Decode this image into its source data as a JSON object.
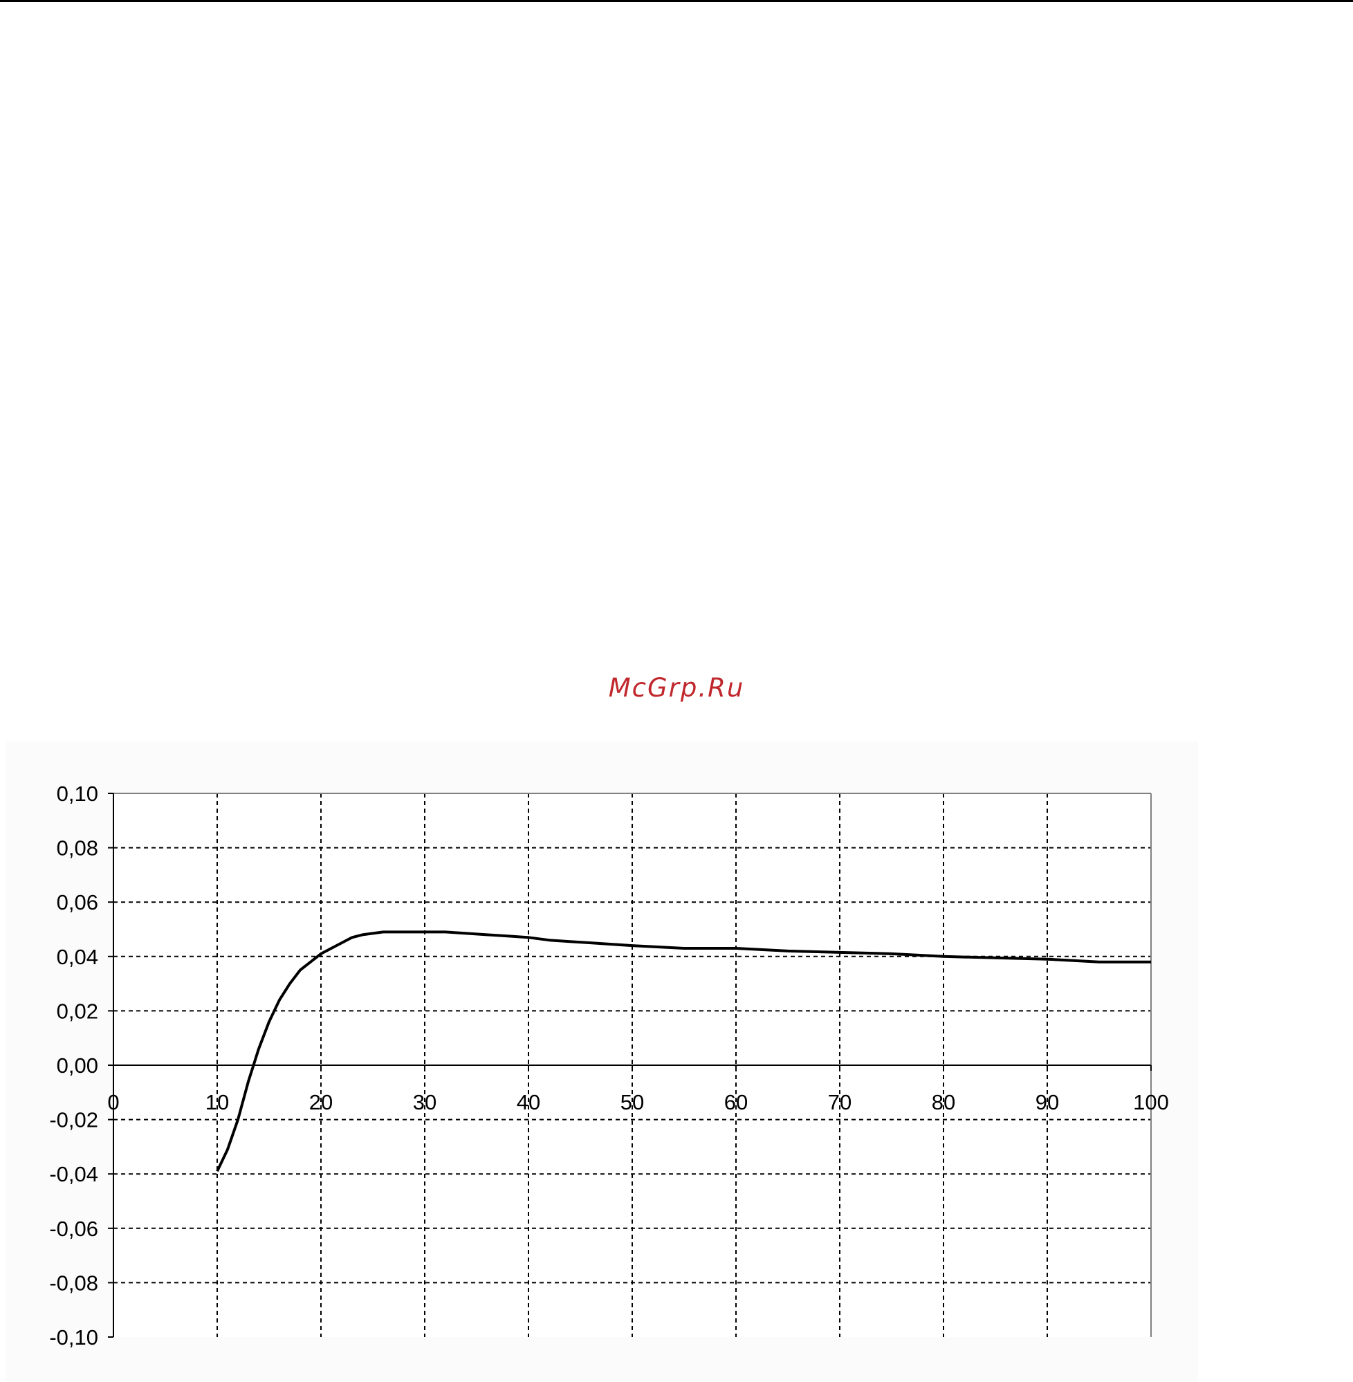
{
  "watermark": "McGrp.Ru",
  "colors": {
    "watermark": "#c0282d",
    "line": "#000000",
    "grid": "#000000",
    "frame": "#808080",
    "panel": "#fbfbfb"
  },
  "chart_data": {
    "type": "line",
    "title": "",
    "xlabel": "",
    "ylabel": "",
    "xlim": [
      0,
      100
    ],
    "ylim": [
      -0.1,
      0.1
    ],
    "grid": true,
    "grid_style": "dashed",
    "legend": "none",
    "x_ticks": [
      0,
      10,
      20,
      30,
      40,
      50,
      60,
      70,
      80,
      90,
      100
    ],
    "x_tick_labels": [
      "0",
      "10",
      "20",
      "30",
      "40",
      "50",
      "60",
      "70",
      "80",
      "90",
      "100"
    ],
    "y_ticks": [
      0.1,
      0.08,
      0.06,
      0.04,
      0.02,
      0.0,
      -0.02,
      -0.04,
      -0.06,
      -0.08,
      -0.1
    ],
    "y_tick_labels": [
      "0,10",
      "0,08",
      "0,06",
      "0,04",
      "0,02",
      "0,00",
      "-0,02",
      "-0,04",
      "-0,06",
      "-0,08",
      "-0,10"
    ],
    "series": [
      {
        "x": [
          10,
          11,
          12,
          13,
          14,
          15,
          16,
          17,
          18,
          19,
          20,
          21,
          22,
          23,
          24,
          25,
          26,
          27,
          28,
          29,
          30,
          32,
          34,
          36,
          38,
          40,
          42,
          44,
          46,
          48,
          50,
          55,
          60,
          65,
          70,
          75,
          80,
          85,
          90,
          95,
          100
        ],
        "y": [
          -0.039,
          -0.031,
          -0.02,
          -0.006,
          0.006,
          0.016,
          0.024,
          0.03,
          0.035,
          0.038,
          0.041,
          0.043,
          0.045,
          0.047,
          0.048,
          0.0485,
          0.049,
          0.049,
          0.049,
          0.049,
          0.049,
          0.049,
          0.0485,
          0.048,
          0.0475,
          0.047,
          0.046,
          0.0455,
          0.045,
          0.0445,
          0.044,
          0.043,
          0.043,
          0.042,
          0.0415,
          0.041,
          0.04,
          0.0395,
          0.039,
          0.038,
          0.038
        ]
      }
    ]
  }
}
